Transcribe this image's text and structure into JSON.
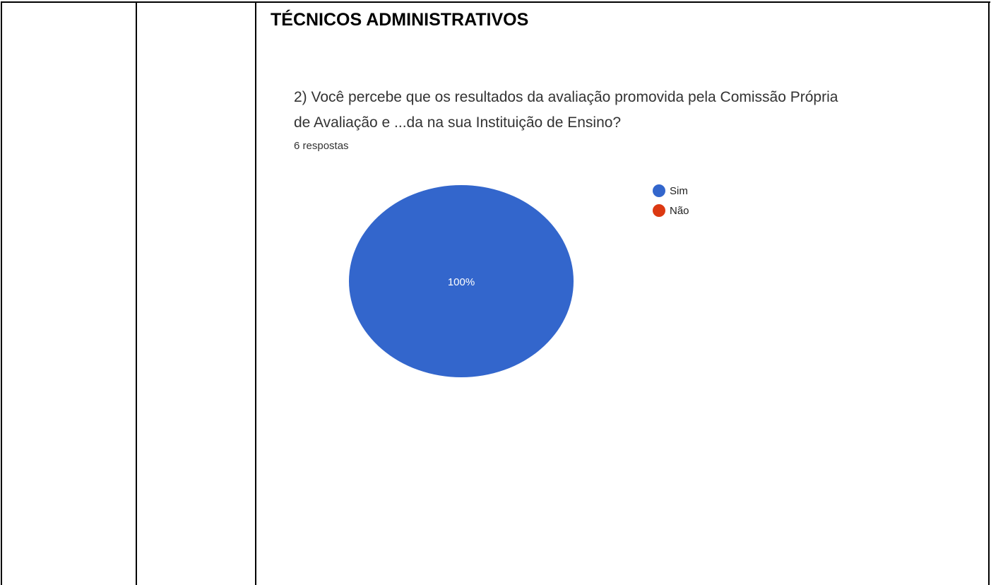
{
  "heading": "TÉCNICOS ADMINISTRATIVOS",
  "chart_data": {
    "type": "pie",
    "title": "2) Você percebe que os resultados da avaliação promovida pela Comissão Própria de Avaliação e ...da na sua Instituição de Ensino?",
    "subtitle": "6 respostas",
    "categories": [
      "Sim",
      "Não"
    ],
    "values": [
      100,
      0
    ],
    "value_labels": [
      "100%",
      null
    ],
    "colors": [
      "#3366cc",
      "#dc3912"
    ],
    "legend": "right"
  }
}
